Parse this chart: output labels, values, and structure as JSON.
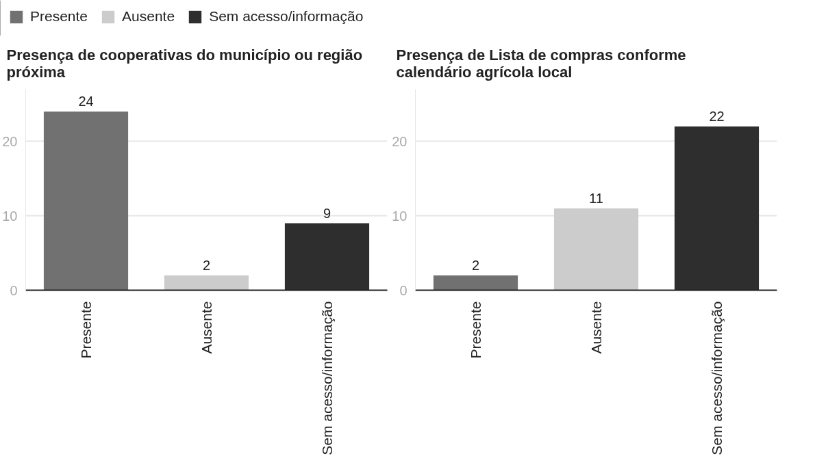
{
  "chart_data": [
    {
      "type": "bar",
      "stacked": true,
      "title": "Presença de cooperativas do município ou região próxima",
      "categories": [
        "Presente",
        "Ausente",
        "Sem acesso/informação"
      ],
      "series": [
        {
          "name": "Presente",
          "color": "#717171",
          "values": [
            24,
            null,
            null
          ]
        },
        {
          "name": "Ausente",
          "color": "#cccccc",
          "values": [
            null,
            2,
            null
          ]
        },
        {
          "name": "Sem acesso/informação",
          "color": "#2e2e2e",
          "values": [
            null,
            null,
            9
          ]
        }
      ],
      "ylim": [
        0,
        27
      ],
      "yticks": [
        0,
        10,
        20
      ],
      "grid": "y",
      "legend": "top left",
      "data_labels": true
    },
    {
      "type": "bar",
      "stacked": true,
      "title": "Presença de Lista de compras conforme calendário agrícola local",
      "categories": [
        "Presente",
        "Ausente",
        "Sem acesso/informação"
      ],
      "series": [
        {
          "color": "#717171",
          "values": [
            2,
            null,
            null
          ]
        },
        {
          "color": "#cccccc",
          "values": [
            null,
            11,
            null
          ]
        },
        {
          "color": "#2e2e2e",
          "values": [
            null,
            null,
            22
          ]
        }
      ],
      "ylim": [
        0,
        27
      ],
      "yticks": [
        0,
        10,
        20
      ],
      "grid": "y",
      "data_labels": true
    }
  ]
}
